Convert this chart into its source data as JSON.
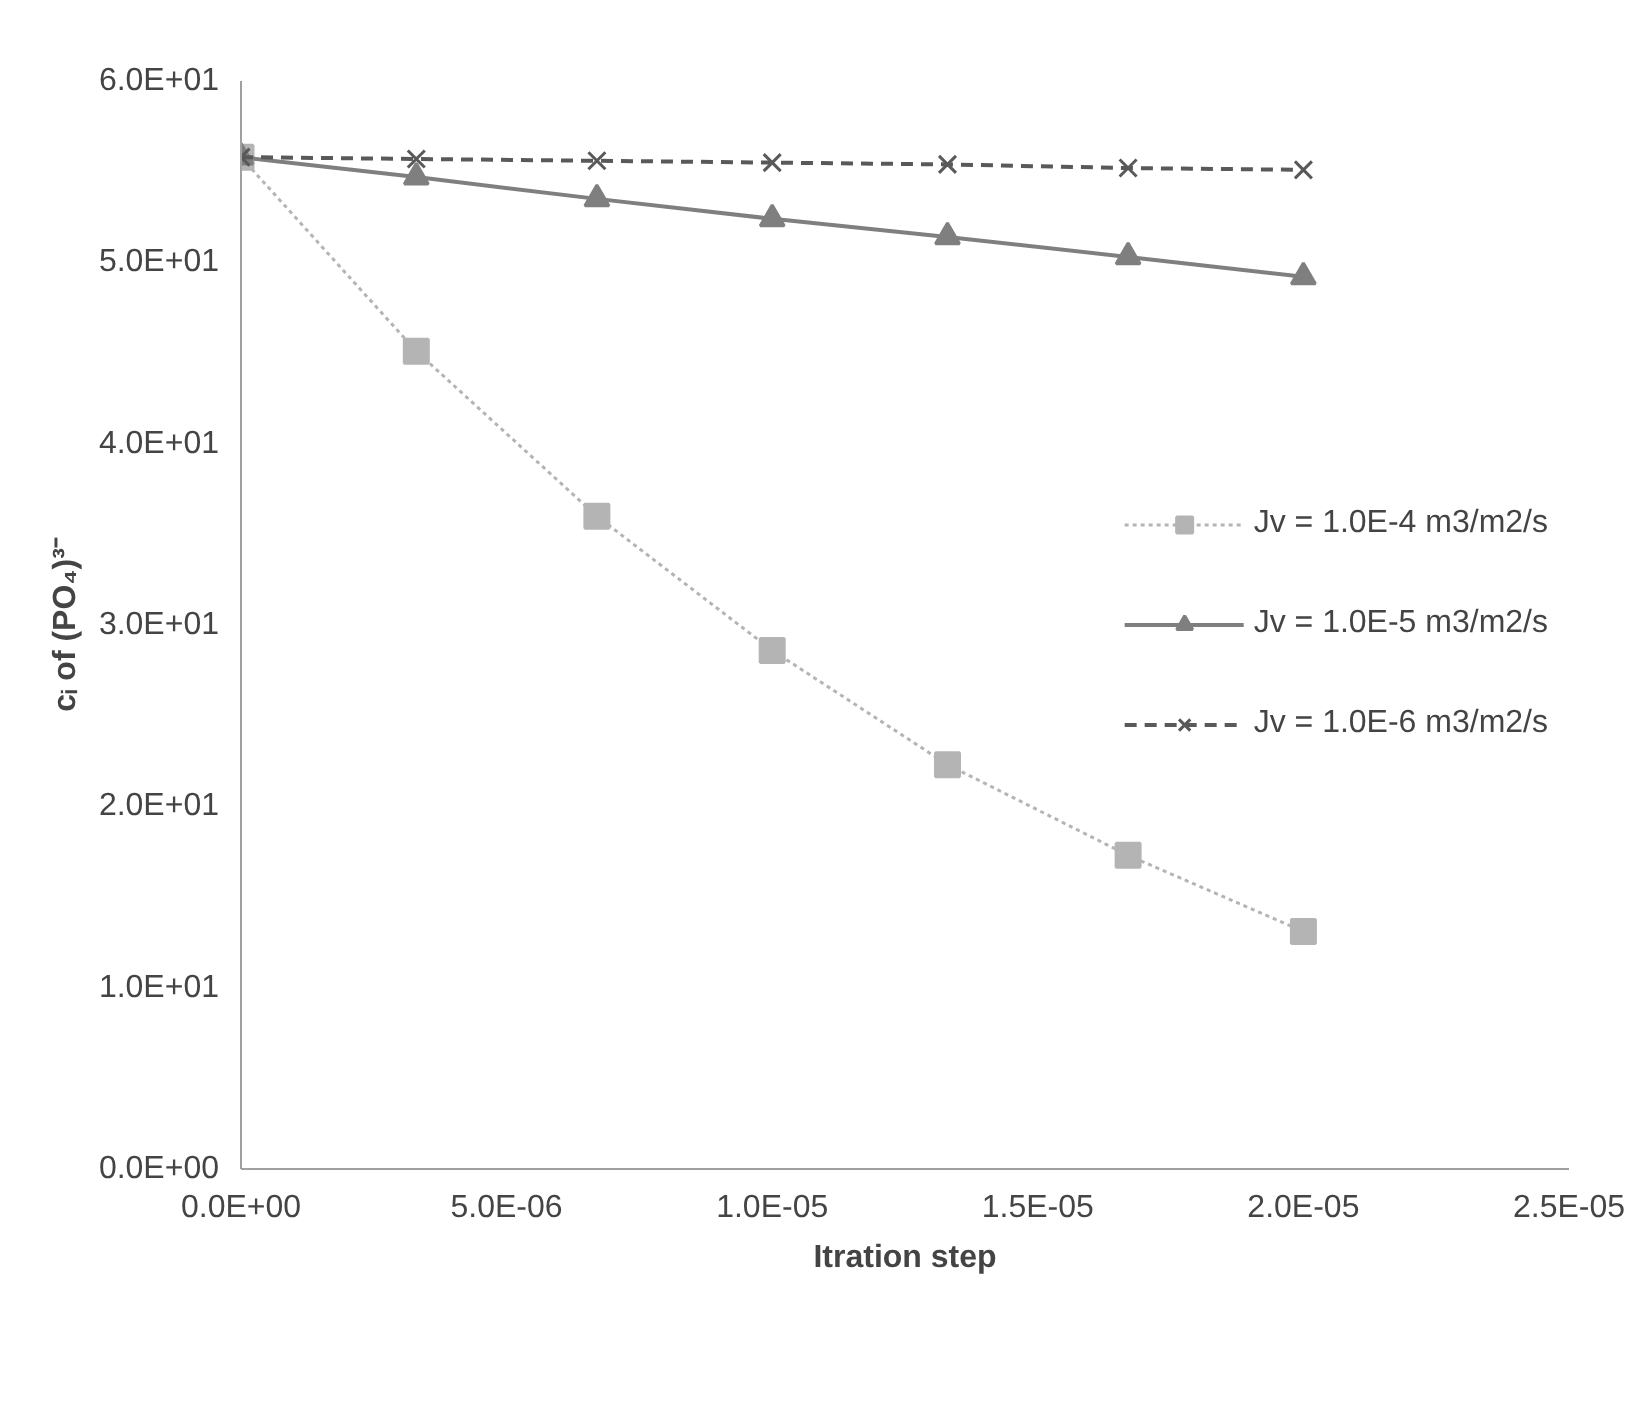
{
  "chart_data": {
    "type": "line",
    "xlabel": "Itration step",
    "ylabel": "cᵢ of (PO₄)³⁻",
    "x": [
      0,
      3.3e-06,
      6.7e-06,
      1e-05,
      1.33e-05,
      1.67e-05,
      2e-05
    ],
    "series": [
      {
        "name": "Jv = 1.0E-4 m3/m2/s",
        "color": "#b4b4b4",
        "marker": "square",
        "line_style": "dotted",
        "values": [
          55.8,
          45.1,
          36.0,
          28.6,
          22.3,
          17.3,
          13.1
        ]
      },
      {
        "name": "Jv = 1.0E-5 m3/m2/s",
        "color": "#7f7f7f",
        "marker": "triangle",
        "line_style": "solid",
        "values": [
          55.8,
          54.7,
          53.5,
          52.4,
          51.4,
          50.3,
          49.2
        ]
      },
      {
        "name": "Jv = 1.0E-6 m3/m2/s",
        "color": "#595959",
        "marker": "cross",
        "line_style": "dashed",
        "values": [
          55.8,
          55.7,
          55.6,
          55.5,
          55.4,
          55.2,
          55.1
        ]
      }
    ],
    "xlim": [
      0,
      2.5e-05
    ],
    "ylim": [
      0,
      60
    ],
    "xticks": [
      {
        "value": 0,
        "label": "0.0E+00"
      },
      {
        "value": 5e-06,
        "label": "5.0E-06"
      },
      {
        "value": 1e-05,
        "label": "1.0E-05"
      },
      {
        "value": 1.5e-05,
        "label": "1.5E-05"
      },
      {
        "value": 2e-05,
        "label": "2.0E-05"
      },
      {
        "value": 2.5e-05,
        "label": "2.5E-05"
      }
    ],
    "yticks": [
      {
        "value": 0,
        "label": "0.0E+00"
      },
      {
        "value": 10,
        "label": "1.0E+01"
      },
      {
        "value": 20,
        "label": "2.0E+01"
      },
      {
        "value": 30,
        "label": "3.0E+01"
      },
      {
        "value": 40,
        "label": "4.0E+01"
      },
      {
        "value": 50,
        "label": "5.0E+01"
      },
      {
        "value": 60,
        "label": "6.0E+01"
      }
    ],
    "grid": false,
    "legend": "right"
  }
}
